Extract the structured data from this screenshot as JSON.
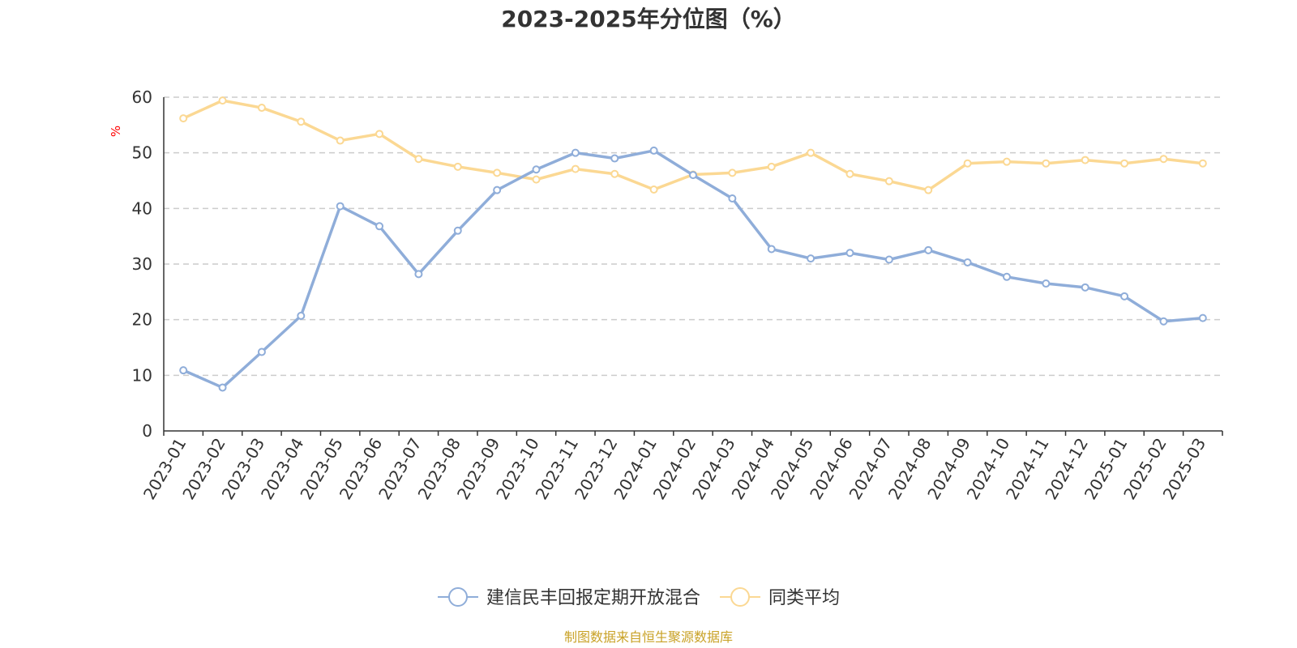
{
  "chart_data": {
    "type": "line",
    "title": "2023-2025年分位图（%）",
    "ylabel": "%",
    "xlabel": "",
    "ylim": [
      0,
      60
    ],
    "yticks": [
      0,
      10,
      20,
      30,
      40,
      50,
      60
    ],
    "grid": true,
    "legend_position": "bottom-center",
    "categories": [
      "2023-01",
      "2023-02",
      "2023-03",
      "2023-04",
      "2023-05",
      "2023-06",
      "2023-07",
      "2023-08",
      "2023-09",
      "2023-10",
      "2023-11",
      "2023-12",
      "2024-01",
      "2024-02",
      "2024-03",
      "2024-04",
      "2024-05",
      "2024-06",
      "2024-07",
      "2024-08",
      "2024-09",
      "2024-10",
      "2024-11",
      "2024-12",
      "2025-01",
      "2025-02",
      "2025-03"
    ],
    "series": [
      {
        "name": "建信民丰回报定期开放混合",
        "color": "#8fadd9",
        "values": [
          10.9,
          7.8,
          14.2,
          20.7,
          40.4,
          36.8,
          28.2,
          36.0,
          43.3,
          47.0,
          50.0,
          49.0,
          50.4,
          46.0,
          41.8,
          32.7,
          31.0,
          32.0,
          30.8,
          32.5,
          30.3,
          27.7,
          26.5,
          25.8,
          24.2,
          19.7,
          20.3
        ]
      },
      {
        "name": "同类平均",
        "color": "#fbd893",
        "values": [
          56.2,
          59.4,
          58.1,
          55.6,
          52.2,
          53.4,
          48.9,
          47.5,
          46.4,
          45.2,
          47.1,
          46.2,
          43.4,
          46.1,
          46.4,
          47.5,
          50.0,
          46.2,
          44.9,
          43.3,
          48.1,
          48.4,
          48.1,
          48.7,
          48.1,
          48.9,
          48.1
        ]
      }
    ]
  },
  "colors": {
    "axis": "#333333",
    "grid": "#cccccc",
    "unit_label": "#ff0000",
    "source_text": "#c9a227"
  },
  "source": "制图数据来自恒生聚源数据库"
}
